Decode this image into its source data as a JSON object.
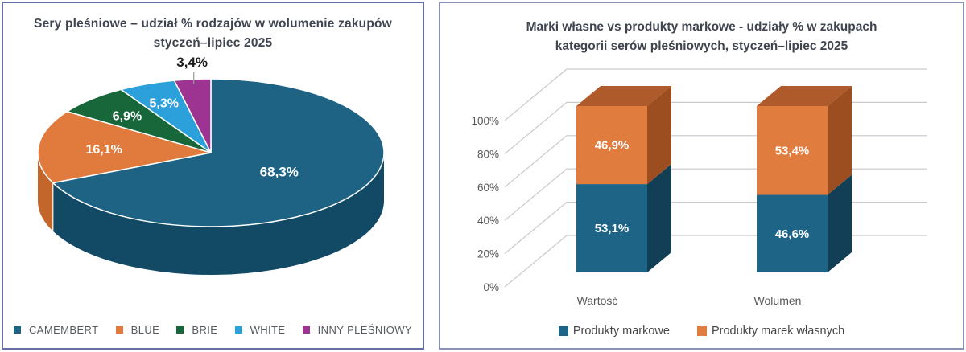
{
  "left_chart": {
    "title_line1": "Sery pleśniowe – udział % rodzajów w wolumenie zakupów",
    "title_line2": "styczeń–lipiec 2025"
  },
  "right_chart": {
    "title_line1": "Marki własne vs produkty markowe - udziały % w zakupach",
    "title_line2": "kategorii serów pleśniowych, styczeń–lipiec 2025"
  },
  "colors": {
    "title_text": "#3E4450",
    "axis_text": "#595959",
    "gridline": "#C9C9CE",
    "left_card_border": "#646FA5",
    "right_card_border": "#8A93B5",
    "leader_line": "#9B9B9B"
  },
  "chart_data": [
    {
      "type": "pie",
      "projection": "3d",
      "title": "Sery pleśniowe – udział % rodzajów w wolumenie zakupów styczeń–lipiec 2025",
      "legend_position": "bottom",
      "slices": [
        {
          "id": "camembert",
          "label": "CAMEMBERT",
          "value": 68.3,
          "data_label": "68,3%",
          "color": "#1E6384",
          "side": "#124A66",
          "label_color": "#ffffff",
          "label_r": 0.47,
          "big": true,
          "label_outside": false
        },
        {
          "id": "blue",
          "label": "BLUE",
          "value": 16.1,
          "data_label": "16,1%",
          "color": "#E07B3D",
          "side": "#C2662C",
          "label_color": "#ffffff",
          "label_r": 0.62,
          "big": false,
          "label_outside": false
        },
        {
          "id": "brie",
          "label": "BRIE",
          "value": 6.9,
          "data_label": "6,9%",
          "color": "#17673A",
          "side": "#0F4D2B",
          "label_color": "#ffffff",
          "label_r": 0.7,
          "big": false,
          "label_outside": false
        },
        {
          "id": "white",
          "label": "WHITE",
          "value": 5.3,
          "data_label": "5,3%",
          "color": "#2BA0DA",
          "side": "#1E7BAC",
          "label_color": "#ffffff",
          "label_r": 0.73,
          "big": false,
          "label_outside": false
        },
        {
          "id": "inny-plesniowy",
          "label": "INNY PLEŚNIOWY",
          "value": 3.4,
          "data_label": "3,4%",
          "color": "#9D3492",
          "side": "#7A2671",
          "label_color": "#1A1A1A",
          "label_r": 0.93,
          "big": false,
          "label_outside": true
        }
      ]
    },
    {
      "type": "bar",
      "stacked": true,
      "projection": "3d",
      "title": "Marki własne vs produkty markowe - udziały % w zakupach kategorii serów pleśniowych, styczeń–lipiec 2025",
      "categories": [
        "Wartość",
        "Wolumen"
      ],
      "series": [
        {
          "name": "Produkty markowe",
          "values": [
            53.1,
            46.6
          ],
          "data_labels": [
            "53,1%",
            "46,6%"
          ],
          "color": "#1D6487",
          "side": "#133F56",
          "top": "#165070"
        },
        {
          "name": "Produkty marek własnych",
          "values": [
            46.9,
            53.4
          ],
          "data_labels": [
            "46,9%",
            "53,4%"
          ],
          "color": "#E07C3E",
          "side": "#9C4E21",
          "top": "#AF5A2A"
        }
      ],
      "yticks": [
        {
          "label": "0%",
          "value": 0
        },
        {
          "label": "20%",
          "value": 20
        },
        {
          "label": "40%",
          "value": 40
        },
        {
          "label": "60%",
          "value": 60
        },
        {
          "label": "80%",
          "value": 80
        },
        {
          "label": "100%",
          "value": 100
        }
      ],
      "ylim": [
        0,
        100
      ],
      "legend_position": "bottom",
      "grid": true
    }
  ]
}
